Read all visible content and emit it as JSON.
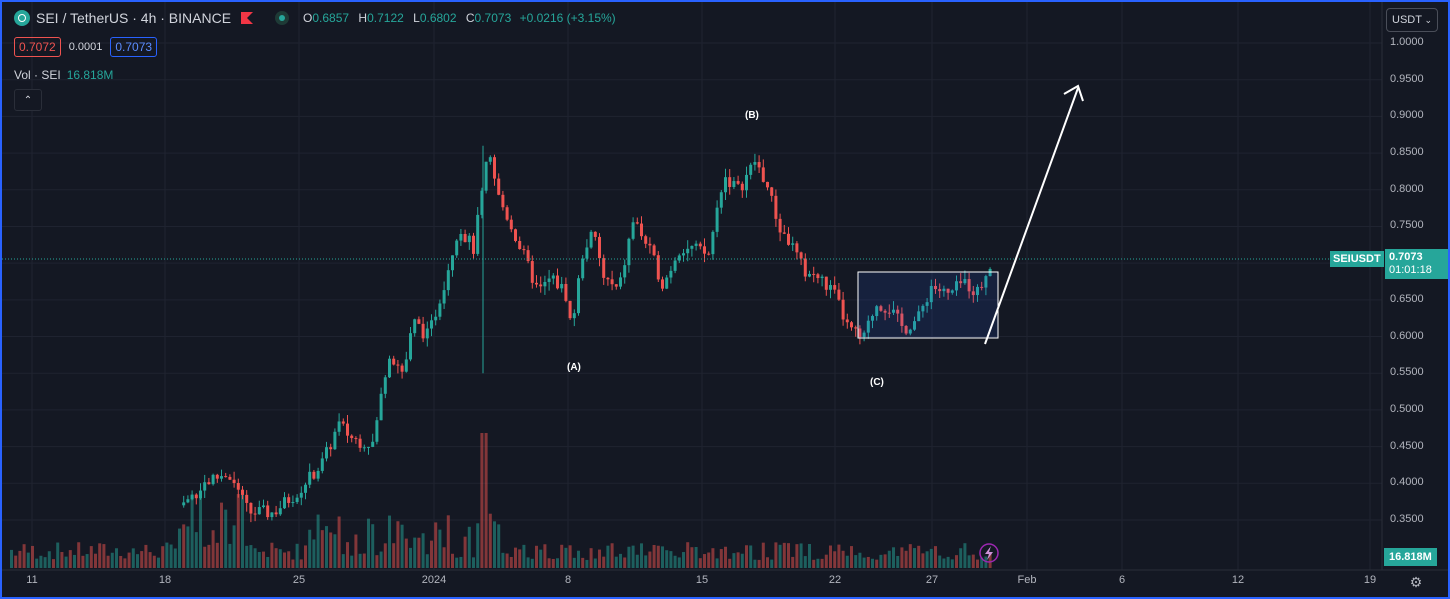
{
  "header": {
    "symbol_title": "SEI / TetherUS · 4h · BINANCE",
    "ohlc": {
      "o_label": "O",
      "o": "0.6857",
      "h_label": "H",
      "h": "0.7122",
      "l_label": "L",
      "l": "0.6802",
      "c_label": "C",
      "c": "0.7073",
      "change": "+0.0216 (+3.15%)"
    },
    "bid": "0.7072",
    "spread": "0.0001",
    "ask": "0.7073",
    "volume_label": "Vol · SEI",
    "volume_value": "16.818M"
  },
  "currency_button": "USDT",
  "price_axis": {
    "ticks": [
      "1.0000",
      "0.9500",
      "0.9000",
      "0.8500",
      "0.8000",
      "0.7500",
      "0.7000",
      "0.6500",
      "0.6000",
      "0.5500",
      "0.5000",
      "0.4500",
      "0.4000",
      "0.3500"
    ]
  },
  "time_axis": {
    "ticks": [
      "11",
      "18",
      "25",
      "2024",
      "8",
      "15",
      "22",
      "27",
      "Feb",
      "6",
      "12",
      "19"
    ]
  },
  "last_price": {
    "symbol_tag": "SEIUSDT",
    "price": "0.7073",
    "countdown": "01:01:18"
  },
  "volume_tag": "16.818M",
  "annotations": {
    "wave_a": "(A)",
    "wave_b": "(B)",
    "wave_c": "(C)"
  },
  "colors": {
    "up": "#26a69a",
    "down": "#ef5350",
    "background": "#141823",
    "grid": "#1f2330",
    "accent_border": "#2962ff"
  },
  "icons": {
    "logo": "sei-logo-icon",
    "flag": "flag-icon",
    "status": "market-open-dot-icon",
    "collapse": "chevron-up-icon",
    "dropdown": "chevron-down-icon",
    "settings": "gear-icon",
    "alert": "lightning-icon"
  }
}
